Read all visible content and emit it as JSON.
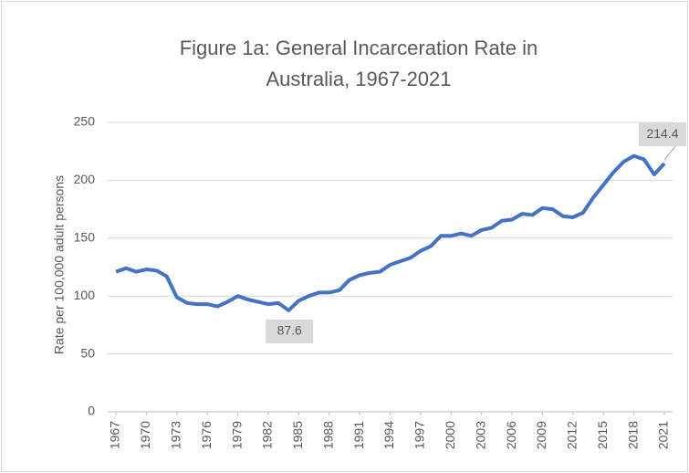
{
  "chart_data": {
    "type": "line",
    "title": [
      "Figure 1a: General Incarceration Rate in",
      "Australia, 1967-2021"
    ],
    "y_label": "Rate per 100,000 adult persons",
    "x": [
      1967,
      1968,
      1969,
      1970,
      1971,
      1972,
      1973,
      1974,
      1975,
      1976,
      1977,
      1978,
      1979,
      1980,
      1981,
      1982,
      1983,
      1984,
      1985,
      1986,
      1987,
      1988,
      1989,
      1990,
      1991,
      1992,
      1993,
      1994,
      1995,
      1996,
      1997,
      1998,
      1999,
      2000,
      2001,
      2002,
      2003,
      2004,
      2005,
      2006,
      2007,
      2008,
      2009,
      2010,
      2011,
      2012,
      2013,
      2014,
      2015,
      2016,
      2017,
      2018,
      2019,
      2020,
      2021
    ],
    "series": [
      {
        "color": "#4472c4",
        "values": [
          121,
          124,
          121,
          123,
          122,
          117,
          99,
          94,
          93,
          93,
          91,
          95,
          100,
          97,
          95,
          93,
          94,
          87.6,
          96,
          100,
          103,
          103,
          105,
          114,
          118,
          120,
          121,
          127,
          130,
          133,
          139,
          143,
          152,
          152,
          154,
          152,
          157,
          159,
          165,
          166,
          171,
          170,
          176,
          175,
          169,
          168,
          172,
          185,
          196,
          207,
          216,
          221,
          218,
          205,
          214.4
        ]
      }
    ],
    "labeled_x": [
      1984,
      2021
    ],
    "xlim": [
      1967,
      2021
    ],
    "xticks": [
      1967,
      1970,
      1973,
      1976,
      1979,
      1982,
      1985,
      1988,
      1991,
      1994,
      1997,
      2000,
      2003,
      2006,
      2009,
      2012,
      2015,
      2018,
      2021
    ],
    "ylim": [
      0,
      250
    ],
    "yticks": [
      0,
      50,
      100,
      150,
      200,
      250
    ],
    "grid": true
  }
}
